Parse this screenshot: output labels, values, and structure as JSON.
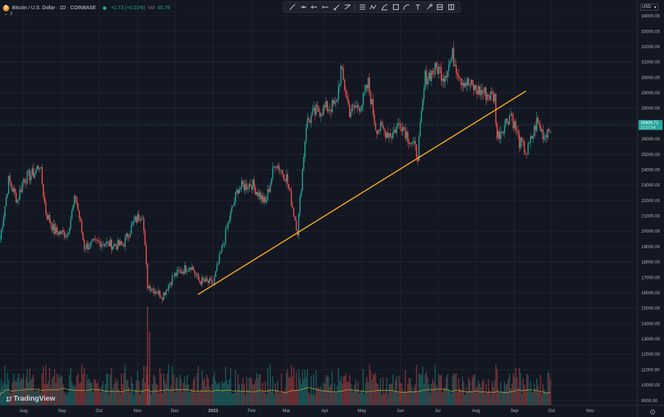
{
  "header": {
    "symbol": "Bitcoin / U.S. Dollar · 1D · COINBASE",
    "change": "+1.73 (+0.01%)",
    "vol_label": "Vol",
    "vol_value": "65.79",
    "collapse_count": "3"
  },
  "toolbar": {
    "tools": [
      "trend-line",
      "horizontal-line",
      "arrow",
      "ray",
      "brush",
      "fib",
      "pattern",
      "path",
      "rectangle",
      "arc",
      "text",
      "measure",
      "price-range",
      "date-range"
    ]
  },
  "currency": "USD",
  "branding": {
    "logo_text": "TradingView",
    "logo_mark": "17"
  },
  "colors": {
    "background": "#131722",
    "grid": "#1f2330",
    "up": "#26a69a",
    "down": "#ef5350",
    "trendline": "#f7a51c",
    "volume_ma": "#c9b236",
    "price_label_bg": "#26a69a"
  },
  "chart_data": {
    "type": "candlestick",
    "symbol": "BTCUSD",
    "interval": "1D",
    "ylim": [
      9000,
      34000
    ],
    "y_ticks": [
      9000,
      10000,
      11000,
      12000,
      13000,
      14000,
      15000,
      16000,
      17000,
      18000,
      19000,
      20000,
      21000,
      22000,
      23000,
      24000,
      25000,
      26000,
      27000,
      28000,
      29000,
      30000,
      31000,
      32000,
      33000,
      34000
    ],
    "y_tick_labels": [
      "9000.00",
      "10000.00",
      "11000.00",
      "12000.00",
      "13000.00",
      "14000.00",
      "15000.00",
      "16000.00",
      "17000.00",
      "18000.00",
      "19000.00",
      "20000.00",
      "21000.00",
      "22000.00",
      "23000.00",
      "24000.00",
      "25000.00",
      "26000.00",
      "27000.00",
      "28000.00",
      "29000.00",
      "30000.00",
      "31000.00",
      "32000.00",
      "33000.00",
      "34000.00"
    ],
    "x_start_date": "2022-07-13",
    "x_end_date": "2023-11-20",
    "x_ticks": [
      {
        "label": "Aug",
        "date": "2022-08-01",
        "bold": false
      },
      {
        "label": "Sep",
        "date": "2022-09-01",
        "bold": false
      },
      {
        "label": "Oct",
        "date": "2022-10-01",
        "bold": false
      },
      {
        "label": "Nov",
        "date": "2022-11-01",
        "bold": false
      },
      {
        "label": "Dec",
        "date": "2022-12-01",
        "bold": false
      },
      {
        "label": "2023",
        "date": "2023-01-01",
        "bold": true
      },
      {
        "label": "Feb",
        "date": "2023-02-01",
        "bold": false
      },
      {
        "label": "Mar",
        "date": "2023-03-01",
        "bold": false
      },
      {
        "label": "Apr",
        "date": "2023-04-01",
        "bold": false
      },
      {
        "label": "May",
        "date": "2023-05-01",
        "bold": false
      },
      {
        "label": "Jun",
        "date": "2023-06-01",
        "bold": false
      },
      {
        "label": "Jul",
        "date": "2023-07-01",
        "bold": false
      },
      {
        "label": "Aug",
        "date": "2023-08-01",
        "bold": false
      },
      {
        "label": "Sep",
        "date": "2023-09-01",
        "bold": false
      },
      {
        "label": "Oct",
        "date": "2023-10-01",
        "bold": false
      },
      {
        "label": "Nov",
        "date": "2023-11-01",
        "bold": false
      }
    ],
    "price_path": [
      {
        "date": "2022-07-13",
        "close": 19500
      },
      {
        "date": "2022-07-20",
        "close": 23300
      },
      {
        "date": "2022-07-27",
        "close": 22000
      },
      {
        "date": "2022-08-01",
        "close": 23400
      },
      {
        "date": "2022-08-10",
        "close": 23800
      },
      {
        "date": "2022-08-14",
        "close": 24400
      },
      {
        "date": "2022-08-19",
        "close": 21200
      },
      {
        "date": "2022-08-26",
        "close": 20000
      },
      {
        "date": "2022-09-05",
        "close": 19800
      },
      {
        "date": "2022-09-12",
        "close": 22300
      },
      {
        "date": "2022-09-19",
        "close": 19000
      },
      {
        "date": "2022-10-01",
        "close": 19300
      },
      {
        "date": "2022-10-13",
        "close": 19100
      },
      {
        "date": "2022-10-20",
        "close": 19100
      },
      {
        "date": "2022-10-29",
        "close": 20600
      },
      {
        "date": "2022-11-05",
        "close": 21200
      },
      {
        "date": "2022-11-09",
        "close": 16500
      },
      {
        "date": "2022-11-21",
        "close": 15800
      },
      {
        "date": "2022-11-30",
        "close": 17100
      },
      {
        "date": "2022-12-14",
        "close": 17800
      },
      {
        "date": "2022-12-20",
        "close": 16800
      },
      {
        "date": "2023-01-01",
        "close": 16600
      },
      {
        "date": "2023-01-14",
        "close": 20800
      },
      {
        "date": "2023-01-21",
        "close": 22800
      },
      {
        "date": "2023-02-01",
        "close": 23100
      },
      {
        "date": "2023-02-12",
        "close": 21800
      },
      {
        "date": "2023-02-20",
        "close": 24500
      },
      {
        "date": "2023-03-01",
        "close": 23500
      },
      {
        "date": "2023-03-10",
        "close": 20000
      },
      {
        "date": "2023-03-17",
        "close": 27000
      },
      {
        "date": "2023-03-25",
        "close": 27800
      },
      {
        "date": "2023-04-10",
        "close": 28200
      },
      {
        "date": "2023-04-14",
        "close": 30500
      },
      {
        "date": "2023-04-21",
        "close": 27800
      },
      {
        "date": "2023-05-01",
        "close": 28300
      },
      {
        "date": "2023-05-06",
        "close": 29600
      },
      {
        "date": "2023-05-12",
        "close": 26800
      },
      {
        "date": "2023-05-25",
        "close": 26300
      },
      {
        "date": "2023-06-01",
        "close": 27100
      },
      {
        "date": "2023-06-15",
        "close": 25000
      },
      {
        "date": "2023-06-21",
        "close": 30000
      },
      {
        "date": "2023-07-01",
        "close": 30600
      },
      {
        "date": "2023-07-06",
        "close": 30100
      },
      {
        "date": "2023-07-13",
        "close": 31400
      },
      {
        "date": "2023-07-20",
        "close": 29900
      },
      {
        "date": "2023-08-01",
        "close": 29200
      },
      {
        "date": "2023-08-16",
        "close": 28700
      },
      {
        "date": "2023-08-18",
        "close": 26100
      },
      {
        "date": "2023-08-29",
        "close": 27700
      },
      {
        "date": "2023-09-05",
        "close": 25800
      },
      {
        "date": "2023-09-11",
        "close": 25100
      },
      {
        "date": "2023-09-19",
        "close": 27100
      },
      {
        "date": "2023-09-25",
        "close": 26200
      },
      {
        "date": "2023-09-30",
        "close": 26900
      }
    ],
    "trendline": {
      "start": {
        "date": "2022-12-20",
        "price": 15900
      },
      "end": {
        "date": "2023-09-10",
        "price": 29100
      }
    },
    "last_price_label": "26908.72",
    "last_price_sublabel": "11:27:54",
    "volume_ma_level": 10000
  }
}
